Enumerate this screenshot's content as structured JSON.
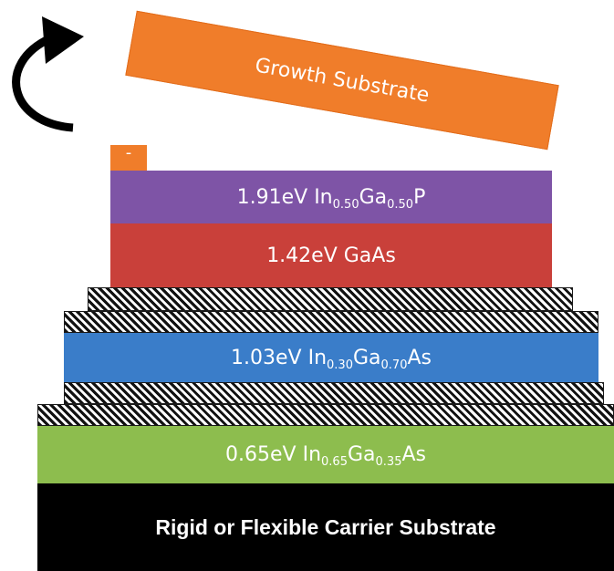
{
  "diagram": {
    "growth_substrate": "Growth Substrate",
    "contact_label": "-",
    "layers": [
      {
        "energy": "1.91eV",
        "p1": " In",
        "s1": "0.50",
        "p2": "Ga",
        "s2": "0.50",
        "p3": "P",
        "color": "#7e54a6"
      },
      {
        "energy": "1.42eV",
        "p1": " GaAs",
        "s1": "",
        "p2": "",
        "s2": "",
        "p3": "",
        "color": "#c9403a"
      },
      {
        "energy": "1.03eV",
        "p1": " In",
        "s1": "0.30",
        "p2": "Ga",
        "s2": "0.70",
        "p3": "As",
        "color": "#3a7dc9"
      },
      {
        "energy": "0.65eV",
        "p1": " In",
        "s1": "0.65",
        "p2": "Ga",
        "s2": "0.35",
        "p3": "As",
        "color": "#8dbd4e"
      }
    ],
    "carrier_substrate": "Rigid or Flexible Carrier Substrate",
    "colors": {
      "growth": "#f07d2a",
      "carrier": "#000000",
      "hatch": "#111111"
    },
    "icons": [
      "rotate-arrow-icon"
    ]
  }
}
